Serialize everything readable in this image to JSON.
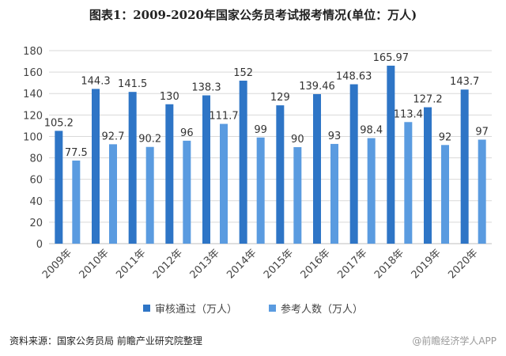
{
  "title": "图表1：2009-2020年国家公务员考试报考情况(单位：万人)",
  "source": "资料来源：国家公务员局 前瞻产业研究院整理",
  "watermark": "@前瞻经济学人APP",
  "colors": {
    "s1": "#2E75C6",
    "s2": "#5A9BE0",
    "grid": "#D9D9D9",
    "axis": "#BFBFBF"
  },
  "chart_data": {
    "type": "bar",
    "title": "图表1：2009-2020年国家公务员考试报考情况(单位：万人)",
    "categories": [
      "2009年",
      "2010年",
      "2011年",
      "2012年",
      "2013年",
      "2014年",
      "2015年",
      "2016年",
      "2017年",
      "2018年",
      "2019年",
      "2020年"
    ],
    "series": [
      {
        "name": "审核通过（万人）",
        "values": [
          105.2,
          144.3,
          141.5,
          130,
          138.3,
          152,
          129,
          139.46,
          148.63,
          165.97,
          127.2,
          143.7
        ],
        "labels": [
          "105.2",
          "144.3",
          "141.5",
          "130",
          "138.3",
          "152",
          "129",
          "139.46",
          "148.63",
          "165.97",
          "127.2",
          "143.7"
        ]
      },
      {
        "name": "参考人数（万人）",
        "values": [
          77.5,
          92.7,
          90.2,
          96,
          111.7,
          99,
          90,
          93,
          98.4,
          113.4,
          92,
          97
        ],
        "labels": [
          "77.5",
          "92.7",
          "90.2",
          "96",
          "111.7",
          "99",
          "90",
          "93",
          "98.4",
          "113.4",
          "92",
          "97"
        ]
      }
    ],
    "yticks": [
      0,
      20,
      40,
      60,
      80,
      100,
      120,
      140,
      160,
      180
    ],
    "ylim": [
      0,
      180
    ],
    "grid": true,
    "legend": "bottom"
  }
}
